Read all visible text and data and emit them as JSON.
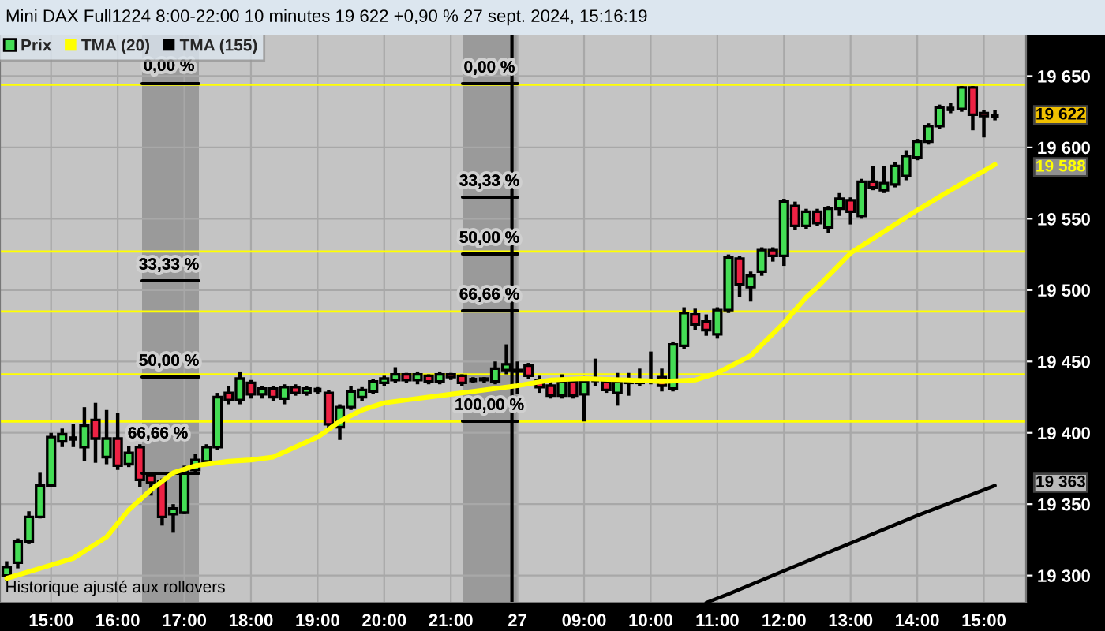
{
  "chart_data": {
    "type": "candlestick",
    "title": "Mini DAX Full1224 8:00-22:00 10 minutes 19 622 +0,90 % 27 sept. 2024, 15:16:19",
    "categories": [
      null,
      null,
      null,
      null,
      "15:00",
      null,
      null,
      null,
      null,
      null,
      "16:00",
      null,
      null,
      null,
      null,
      null,
      "17:00",
      null,
      null,
      null,
      null,
      null,
      "18:00",
      null,
      null,
      null,
      null,
      null,
      "19:00",
      null,
      null,
      null,
      null,
      null,
      "20:00",
      null,
      null,
      null,
      null,
      null,
      "21:00",
      null,
      null,
      null,
      null,
      null,
      "27",
      null,
      null,
      null,
      null,
      null,
      "09:00",
      null,
      null,
      null,
      null,
      null,
      "10:00",
      null,
      null,
      null,
      null,
      null,
      "11:00",
      null,
      null,
      null,
      null,
      null,
      "12:00",
      null,
      null,
      null,
      null,
      null,
      "13:00",
      null,
      null,
      null,
      null,
      null,
      "14:00",
      null,
      null,
      null,
      null,
      null,
      "15:00",
      null
    ],
    "series": [
      {
        "name": "Prix",
        "colors": [
          "#44dd55",
          "#44dd55",
          "#44dd55",
          "#44dd55",
          "#44dd55",
          "#44dd55",
          "#000000",
          "#44dd55",
          "#ee2244",
          "#44dd55",
          "#ee2244",
          "#44dd55",
          "#ee2244",
          "#ee2244",
          "#ee2244",
          "#44dd55",
          "#44dd55",
          "#44dd55",
          "#44dd55",
          "#44dd55",
          "#ee2244",
          "#44dd55",
          "#ee2244",
          "#44dd55",
          "#ee2244",
          "#44dd55",
          "#ee2244",
          "#44dd55",
          "#000000",
          "#ee2244",
          "#44dd55",
          "#44dd55",
          "#44dd55",
          "#44dd55",
          "#44dd55",
          "#44dd55",
          "#ee2244",
          "#44dd55",
          "#ee2244",
          "#44dd55",
          "#ee2244",
          "#ee2244",
          "#000000",
          "#44dd55",
          "#44dd55",
          "#44dd55",
          "#44dd55",
          "#ee2244",
          "#ee2244",
          "#ee2244",
          "#44dd55",
          "#ee2244",
          "#44dd55",
          "#000000",
          "#ee2244",
          "#44dd55",
          "#ee2244",
          "#44dd55",
          "#44dd55",
          "#ee2244",
          "#44dd55",
          "#44dd55",
          "#ee2244",
          "#ee2244",
          "#44dd55",
          "#44dd55",
          "#ee2244",
          "#44dd55",
          "#44dd55",
          "#ee2244",
          "#44dd55",
          "#ee2244",
          "#44dd55",
          "#ee2244",
          "#44dd55",
          "#44dd55",
          "#ee2244",
          "#44dd55",
          "#ee2244",
          "#44dd55",
          "#44dd55",
          "#44dd55",
          "#44dd55",
          "#44dd55",
          "#44dd55",
          "#000000",
          "#44dd55",
          "#ee2244",
          "#ee2244",
          "#000000"
        ],
        "ohlc": [
          [
            19300,
            19310,
            19296,
            19306
          ],
          [
            19309,
            19326,
            19305,
            19324
          ],
          [
            19324,
            19345,
            19322,
            19341
          ],
          [
            19341,
            19372,
            19340,
            19363
          ],
          [
            19363,
            19400,
            19362,
            19397
          ],
          [
            19394,
            19403,
            19390,
            19399
          ],
          [
            19396,
            19406,
            19390,
            19396
          ],
          [
            19390,
            19418,
            19380,
            19405
          ],
          [
            19409,
            19421,
            19379,
            19396
          ],
          [
            19383,
            19416,
            19378,
            19396
          ],
          [
            19396,
            19414,
            19374,
            19377
          ],
          [
            19378,
            19391,
            19376,
            19386
          ],
          [
            19390,
            19392,
            19362,
            19367
          ],
          [
            19370,
            19372,
            19356,
            19365
          ],
          [
            19366,
            19368,
            19335,
            19341
          ],
          [
            19343,
            19350,
            19330,
            19347
          ],
          [
            19344,
            19377,
            19343,
            19374
          ],
          [
            19374,
            19385,
            19372,
            19381
          ],
          [
            19380,
            19392,
            19378,
            19390
          ],
          [
            19390,
            19428,
            19388,
            19425
          ],
          [
            19428,
            19433,
            19420,
            19423
          ],
          [
            19423,
            19443,
            19420,
            19438
          ],
          [
            19435,
            19437,
            19424,
            19427
          ],
          [
            19427,
            19433,
            19424,
            19431
          ],
          [
            19431,
            19433,
            19422,
            19425
          ],
          [
            19424,
            19434,
            19420,
            19432
          ],
          [
            19432,
            19434,
            19426,
            19428
          ],
          [
            19428,
            19433,
            19426,
            19431
          ],
          [
            19430,
            19432,
            19427,
            19430
          ],
          [
            19428,
            19430,
            19403,
            19406
          ],
          [
            19404,
            19420,
            19395,
            19418
          ],
          [
            19418,
            19433,
            19416,
            19429
          ],
          [
            19425,
            19432,
            19422,
            19430
          ],
          [
            19429,
            19438,
            19427,
            19436
          ],
          [
            19435,
            19440,
            19433,
            19438
          ],
          [
            19437,
            19446,
            19435,
            19441
          ],
          [
            19441,
            19442,
            19435,
            19437
          ],
          [
            19437,
            19443,
            19434,
            19441
          ],
          [
            19440,
            19441,
            19434,
            19436
          ],
          [
            19436,
            19443,
            19434,
            19441
          ],
          [
            19441,
            19442,
            19437,
            19439
          ],
          [
            19440,
            19441,
            19433,
            19435
          ],
          [
            19437,
            19439,
            19435,
            19437
          ],
          [
            19437,
            19439,
            19435,
            19438
          ],
          [
            19436,
            19450,
            19434,
            19445
          ],
          [
            19444,
            19462,
            19441,
            19448
          ],
          [
            19443,
            19450,
            19427,
            19444
          ],
          [
            19447,
            19449,
            19438,
            19440
          ],
          [
            19437,
            19440,
            19428,
            19432
          ],
          [
            19433,
            19436,
            19424,
            19426
          ],
          [
            19426,
            19441,
            19424,
            19436
          ],
          [
            19436,
            19438,
            19424,
            19426
          ],
          [
            19427,
            19438,
            19408,
            19436
          ],
          [
            19437,
            19452,
            19433,
            19437
          ],
          [
            19436,
            19439,
            19428,
            19430
          ],
          [
            19428,
            19442,
            19419,
            19436
          ],
          [
            19436,
            19442,
            19426,
            19435
          ],
          [
            19435,
            19445,
            19433,
            19436
          ],
          [
            19436,
            19457,
            19434,
            19437
          ],
          [
            19439,
            19445,
            19429,
            19433
          ],
          [
            19431,
            19464,
            19429,
            19462
          ],
          [
            19461,
            19488,
            19459,
            19484
          ],
          [
            19483,
            19487,
            19472,
            19476
          ],
          [
            19478,
            19483,
            19468,
            19472
          ],
          [
            19469,
            19488,
            19466,
            19486
          ],
          [
            19486,
            19525,
            19484,
            19523
          ],
          [
            19522,
            19524,
            19495,
            19504
          ],
          [
            19502,
            19513,
            19492,
            19510
          ],
          [
            19513,
            19530,
            19510,
            19528
          ],
          [
            19528,
            19530,
            19520,
            19524
          ],
          [
            19524,
            19564,
            19517,
            19562
          ],
          [
            19559,
            19562,
            19542,
            19545
          ],
          [
            19545,
            19557,
            19543,
            19555
          ],
          [
            19555,
            19557,
            19545,
            19547
          ],
          [
            19544,
            19559,
            19540,
            19557
          ],
          [
            19557,
            19568,
            19552,
            19564
          ],
          [
            19563,
            19565,
            19546,
            19555
          ],
          [
            19552,
            19578,
            19550,
            19576
          ],
          [
            19576,
            19587,
            19570,
            19572
          ],
          [
            19570,
            19587,
            19568,
            19575
          ],
          [
            19574,
            19590,
            19572,
            19587
          ],
          [
            19580,
            19598,
            19577,
            19594
          ],
          [
            19593,
            19606,
            19591,
            19604
          ],
          [
            19604,
            19617,
            19602,
            19615
          ],
          [
            19615,
            19630,
            19613,
            19628
          ],
          [
            19627,
            19631,
            19624,
            19627
          ],
          [
            19627,
            19643,
            19625,
            19642
          ],
          [
            19642,
            19643,
            19612,
            19623
          ],
          [
            19624,
            19626,
            19607,
            19622
          ],
          [
            19622,
            19626,
            19619,
            19622
          ]
        ]
      },
      {
        "name": "TMA (20)",
        "type": "line",
        "color": "#ffff00",
        "values": [
          19298,
          null,
          null,
          19305,
          null,
          null,
          19312,
          null,
          null,
          19327,
          null,
          19346,
          null,
          19360,
          null,
          19372,
          null,
          19377,
          null,
          null,
          19380,
          null,
          19381,
          null,
          19383,
          null,
          19390,
          null,
          19397,
          null,
          19408,
          null,
          19416,
          null,
          19421,
          null,
          null,
          19424,
          null,
          null,
          19427,
          null,
          null,
          19430,
          null,
          null,
          19433,
          null,
          null,
          19437,
          null,
          null,
          19438,
          null,
          null,
          null,
          19437,
          null,
          null,
          19436,
          null,
          null,
          19437,
          null,
          19442,
          null,
          null,
          19454,
          null,
          null,
          19477,
          null,
          19495,
          19502,
          null,
          null,
          19526,
          null,
          null,
          19541,
          null,
          null,
          19556,
          null,
          null,
          19570,
          null,
          null,
          null,
          19588
        ]
      },
      {
        "name": "TMA (155)",
        "type": "line",
        "color": "#000000",
        "values": [
          null,
          null,
          null,
          null,
          null,
          null,
          null,
          null,
          null,
          null,
          null,
          null,
          null,
          null,
          null,
          null,
          null,
          null,
          null,
          null,
          null,
          null,
          null,
          null,
          null,
          null,
          null,
          null,
          null,
          null,
          null,
          null,
          null,
          null,
          null,
          null,
          null,
          null,
          null,
          null,
          null,
          null,
          null,
          null,
          null,
          null,
          null,
          null,
          null,
          null,
          null,
          null,
          null,
          null,
          null,
          null,
          null,
          null,
          null,
          null,
          null,
          null,
          null,
          19281,
          null,
          19287,
          null,
          null,
          null,
          null,
          null,
          null,
          null,
          19313,
          null,
          null,
          null,
          null,
          null,
          null,
          null,
          null,
          19342,
          null,
          null,
          null,
          null,
          null,
          null,
          19363
        ]
      }
    ],
    "ylim": [
      19281,
      19679
    ],
    "yticks": [
      {
        "value": 19300,
        "label": "19 300"
      },
      {
        "value": 19350,
        "label": "19 350"
      },
      {
        "value": 19400,
        "label": "19 400"
      },
      {
        "value": 19450,
        "label": "19 450"
      },
      {
        "value": 19500,
        "label": "19 500"
      },
      {
        "value": 19550,
        "label": "19 550"
      },
      {
        "value": 19600,
        "label": "19 600"
      },
      {
        "value": 19650,
        "label": "19 650"
      }
    ],
    "grid": true,
    "legend": "top left",
    "ref_lines": [
      {
        "axis": "y",
        "value": 19644,
        "color": "#ffff00"
      },
      {
        "axis": "y",
        "value": 19527,
        "color": "#ffff00"
      },
      {
        "axis": "y",
        "value": 19485,
        "color": "#ffff00"
      },
      {
        "axis": "y",
        "value": 19441,
        "color": "#ffff00"
      },
      {
        "axis": "y",
        "value": 19408,
        "color": "#ffff00"
      },
      {
        "axis": "x",
        "value": "27",
        "color": "#000000"
      }
    ],
    "annotations": [
      "0,00 %",
      "33,33 %",
      "50,00 %",
      "66,66 %",
      "0,00 %",
      "33,33 %",
      "50,00 %",
      "66,66 %",
      "100,00 %",
      "19 622",
      "19 588",
      "19 363",
      "Historique ajusté aux rollovers"
    ]
  }
}
